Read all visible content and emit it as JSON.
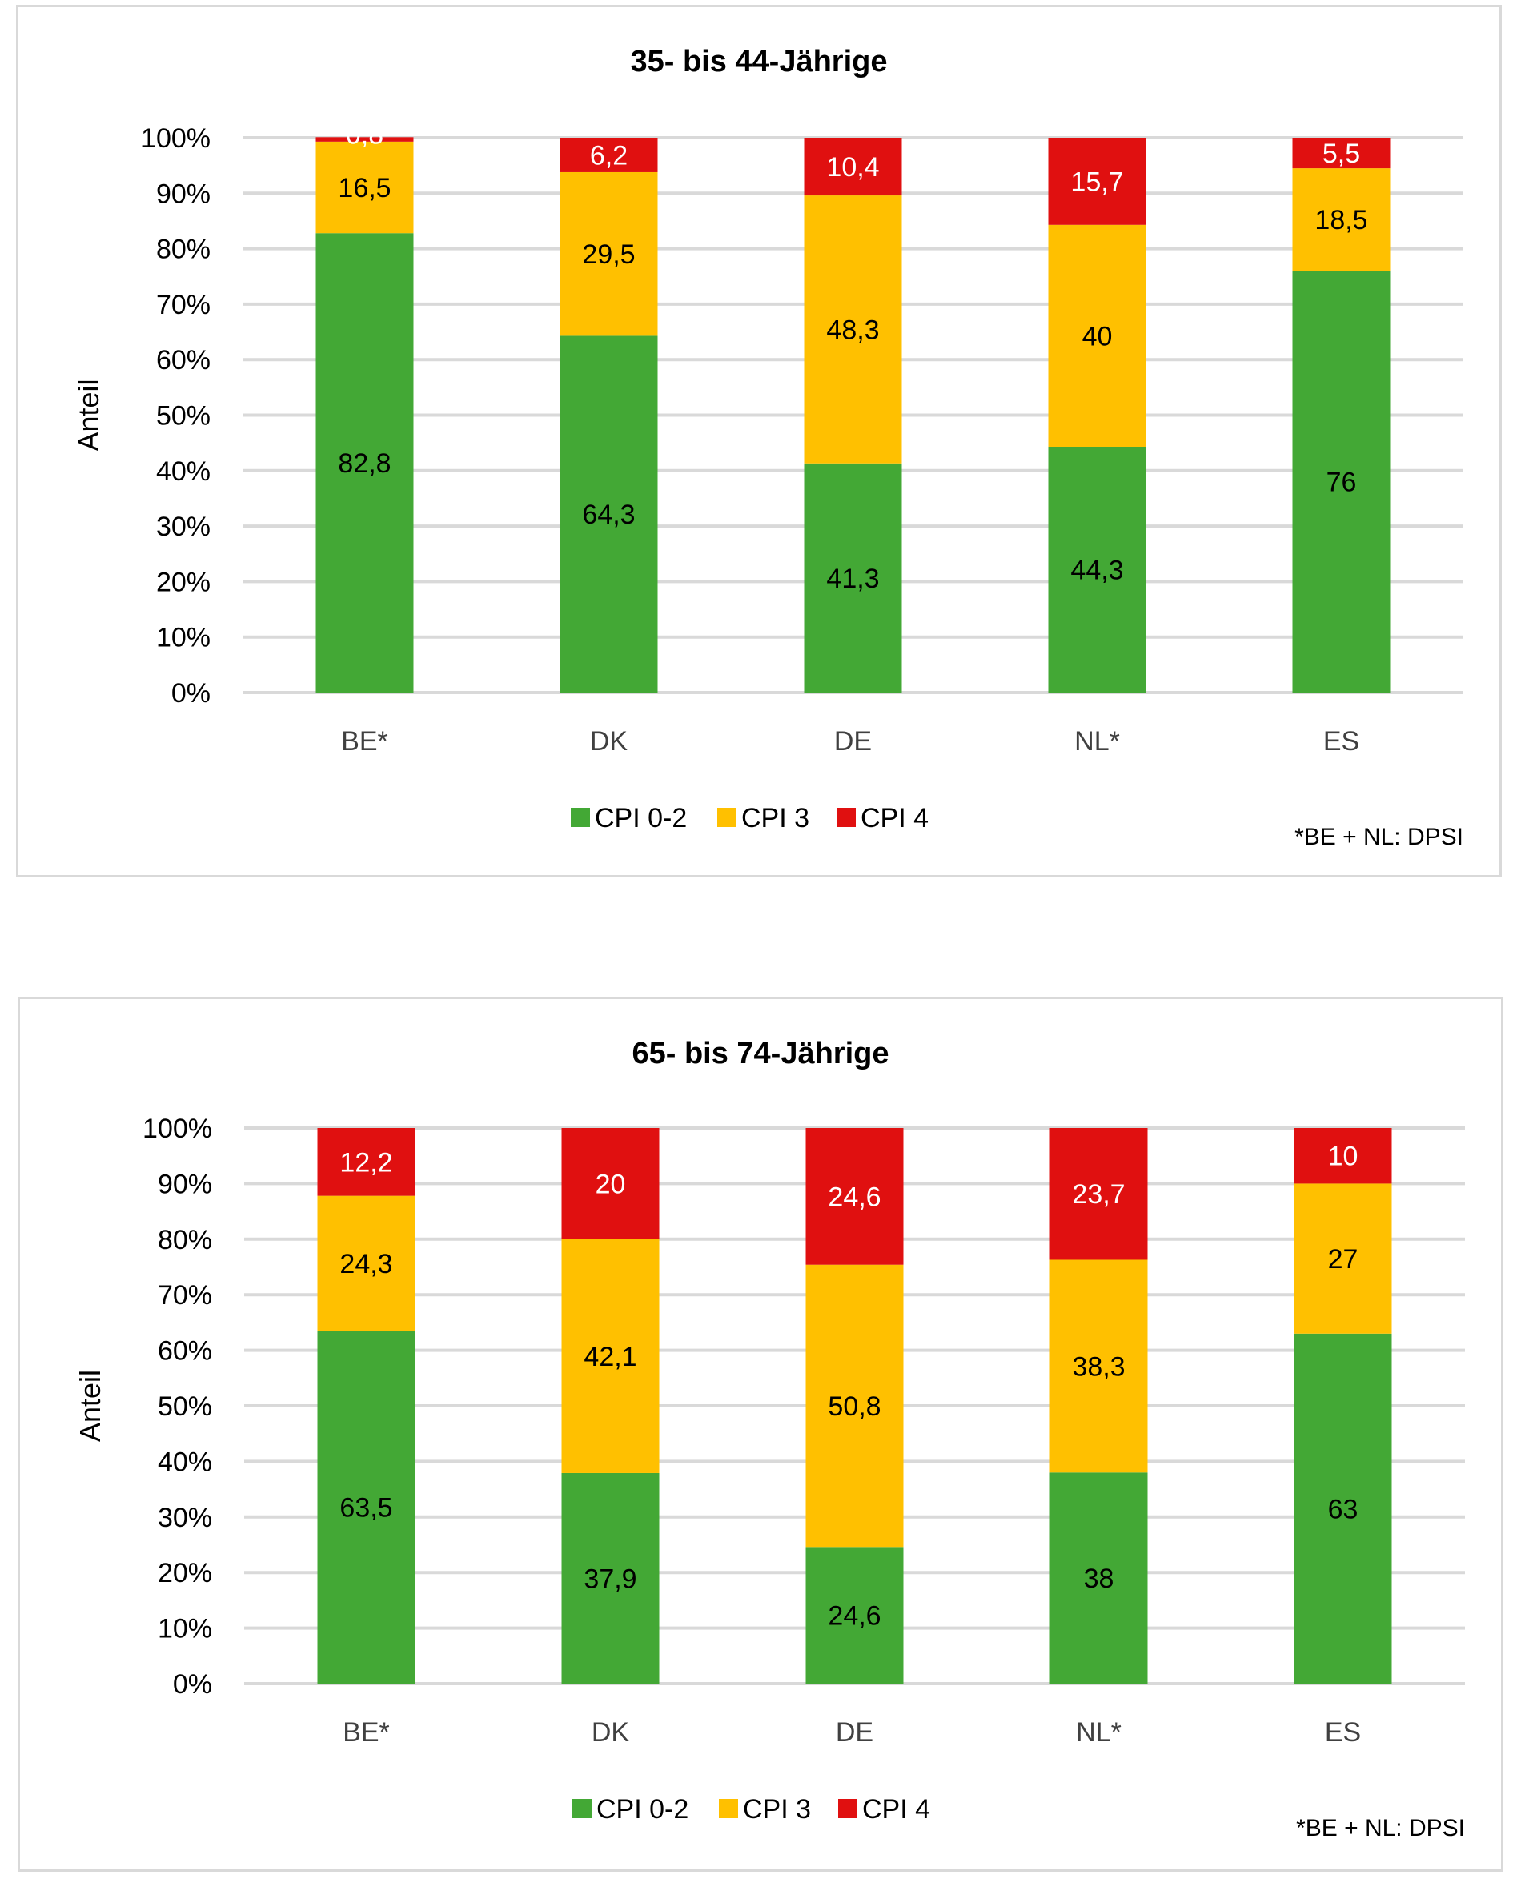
{
  "chart_data": [
    {
      "type": "bar",
      "stacked": true,
      "title": "35- bis 44-Jährige",
      "xlabel": "",
      "ylabel": "Anteil",
      "ylim": [
        0,
        100
      ],
      "yticks": [
        "0%",
        "10%",
        "20%",
        "30%",
        "40%",
        "50%",
        "60%",
        "70%",
        "80%",
        "90%",
        "100%"
      ],
      "grid": true,
      "legend_position": "bottom",
      "categories": [
        "BE*",
        "DK",
        "DE",
        "NL*",
        "ES"
      ],
      "series": [
        {
          "name": "CPI 0-2",
          "color": "#43a835",
          "label_color": "#000000",
          "values": [
            82.8,
            64.3,
            41.3,
            44.3,
            76
          ]
        },
        {
          "name": "CPI 3",
          "color": "#ffc000",
          "label_color": "#000000",
          "values": [
            16.5,
            29.5,
            48.3,
            40,
            18.5
          ]
        },
        {
          "name": "CPI 4",
          "color": "#e01010",
          "label_color": "#ffffff",
          "values": [
            0.8,
            6.2,
            10.4,
            15.7,
            5.5
          ]
        }
      ],
      "data_labels": [
        [
          "82,8",
          "64,3",
          "41,3",
          "44,3",
          "76"
        ],
        [
          "16,5",
          "29,5",
          "48,3",
          "40",
          "18,5"
        ],
        [
          "0,8",
          "6,2",
          "10,4",
          "15,7",
          "5,5"
        ]
      ],
      "footnote": "*BE + NL: DPSI"
    },
    {
      "type": "bar",
      "stacked": true,
      "title": "65- bis 74-Jährige",
      "xlabel": "",
      "ylabel": "Anteil",
      "ylim": [
        0,
        100
      ],
      "yticks": [
        "0%",
        "10%",
        "20%",
        "30%",
        "40%",
        "50%",
        "60%",
        "70%",
        "80%",
        "90%",
        "100%"
      ],
      "grid": true,
      "legend_position": "bottom",
      "categories": [
        "BE*",
        "DK",
        "DE",
        "NL*",
        "ES"
      ],
      "series": [
        {
          "name": "CPI 0-2",
          "color": "#43a835",
          "label_color": "#000000",
          "values": [
            63.5,
            37.9,
            24.6,
            38,
            63
          ]
        },
        {
          "name": "CPI 3",
          "color": "#ffc000",
          "label_color": "#000000",
          "values": [
            24.3,
            42.1,
            50.8,
            38.3,
            27
          ]
        },
        {
          "name": "CPI 4",
          "color": "#e01010",
          "label_color": "#ffffff",
          "values": [
            12.2,
            20,
            24.6,
            23.7,
            10
          ]
        }
      ],
      "data_labels": [
        [
          "63,5",
          "37,9",
          "24,6",
          "38",
          "63"
        ],
        [
          "24,3",
          "42,1",
          "50,8",
          "38,3",
          "27"
        ],
        [
          "12,2",
          "20",
          "24,6",
          "23,7",
          "10"
        ]
      ],
      "footnote": "*BE + NL: DPSI"
    }
  ]
}
